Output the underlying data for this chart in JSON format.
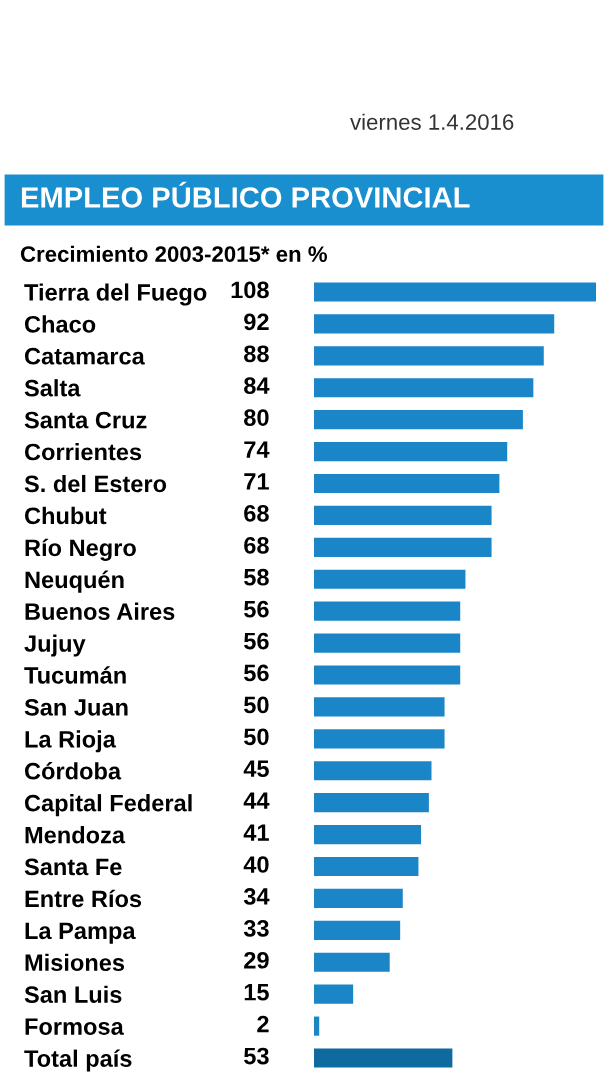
{
  "chart_data": {
    "type": "bar",
    "orientation": "horizontal",
    "title": "EMPLEO PÚBLICO PROVINCIAL",
    "subtitle": "Crecimiento 2003-2015* en %",
    "annotations": [
      "viernes 1.4.2016"
    ],
    "categories": [
      "Tierra del Fuego",
      "Chaco",
      "Catamarca",
      "Salta",
      "Santa Cruz",
      "Corrientes",
      "S. del Estero",
      "Chubut",
      "Río Negro",
      "Neuquén",
      "Buenos Aires",
      "Jujuy",
      "Tucumán",
      "San Juan",
      "La Rioja",
      "Córdoba",
      "Capital Federal",
      "Mendoza",
      "Santa Fe",
      "Entre Ríos",
      "La Pampa",
      "Misiones",
      "San Luis",
      "Formosa",
      "Total país"
    ],
    "values": [
      108,
      92,
      88,
      84,
      80,
      74,
      71,
      68,
      68,
      58,
      56,
      56,
      56,
      50,
      50,
      45,
      44,
      41,
      40,
      34,
      33,
      29,
      15,
      2,
      53
    ],
    "colors": [
      "#1a86c8",
      "#1a86c8",
      "#1a86c8",
      "#1a86c8",
      "#1a86c8",
      "#1a86c8",
      "#1a86c8",
      "#1a86c8",
      "#1a86c8",
      "#1a86c8",
      "#1a86c8",
      "#1a86c8",
      "#1a86c8",
      "#1a86c8",
      "#1a86c8",
      "#1a86c8",
      "#1a86c8",
      "#1a86c8",
      "#1a86c8",
      "#1a86c8",
      "#1a86c8",
      "#1a86c8",
      "#1a86c8",
      "#1a86c8",
      "#0f6aa0"
    ],
    "data_labels": true
  }
}
